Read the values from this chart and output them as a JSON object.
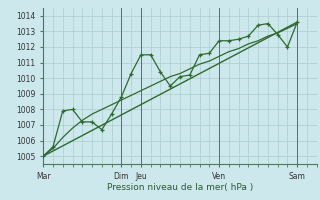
{
  "xlabel": "Pression niveau de la mer( hPa )",
  "bg_color": "#cce8ec",
  "grid_color": "#aacccc",
  "line_color": "#2d6a2d",
  "ylim": [
    1004.5,
    1014.5
  ],
  "xlim": [
    0,
    14.0
  ],
  "day_labels": [
    "Mar",
    "",
    "",
    "",
    "Dim",
    "Jeu",
    "",
    "",
    "",
    "Ven",
    "",
    "",
    "",
    "Sam"
  ],
  "day_positions": [
    0,
    1,
    2,
    3,
    4,
    5,
    6,
    7,
    8,
    9,
    10,
    11,
    12,
    13
  ],
  "tick_labels": [
    "Mar",
    "",
    "",
    "",
    "Dim",
    "Jeu",
    "",
    "",
    "",
    "Ven",
    "",
    "",
    "",
    "Sam"
  ],
  "vline_positions": [
    0,
    4,
    5,
    9,
    13
  ],
  "smooth_x": [
    0,
    0.5,
    1,
    1.5,
    2,
    2.5,
    3,
    3.5,
    4,
    4.5,
    5,
    5.5,
    6,
    6.5,
    7,
    7.5,
    8,
    8.5,
    9,
    9.5,
    10,
    10.5,
    11,
    11.5,
    12,
    12.5,
    13
  ],
  "smooth_y": [
    1005.0,
    1005.5,
    1006.2,
    1006.8,
    1007.3,
    1007.7,
    1008.0,
    1008.3,
    1008.6,
    1008.9,
    1009.2,
    1009.5,
    1009.8,
    1010.1,
    1010.3,
    1010.6,
    1010.9,
    1011.1,
    1011.4,
    1011.7,
    1011.9,
    1012.2,
    1012.4,
    1012.7,
    1012.9,
    1013.2,
    1013.5
  ],
  "data_x": [
    0,
    0.5,
    1,
    1.5,
    2,
    2.5,
    3,
    3.5,
    4,
    4.5,
    5,
    5.5,
    6,
    6.5,
    7,
    7.5,
    8,
    8.5,
    9,
    9.5,
    10,
    10.5,
    11,
    11.5,
    12,
    12.5,
    13
  ],
  "data_y": [
    1005.0,
    1005.6,
    1007.9,
    1008.0,
    1007.2,
    1007.2,
    1006.7,
    1007.7,
    1008.8,
    1010.3,
    1011.5,
    1011.5,
    1010.4,
    1009.5,
    1010.1,
    1010.2,
    1011.5,
    1011.6,
    1012.4,
    1012.4,
    1012.5,
    1012.7,
    1013.4,
    1013.5,
    1012.8,
    1012.0,
    1013.6
  ],
  "trend_x": [
    0,
    13
  ],
  "trend_y": [
    1005.0,
    1013.6
  ],
  "yticks": [
    1005,
    1006,
    1007,
    1008,
    1009,
    1010,
    1011,
    1012,
    1013,
    1014
  ]
}
